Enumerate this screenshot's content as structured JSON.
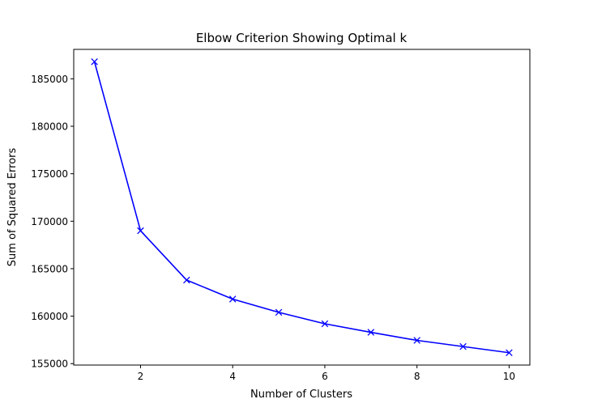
{
  "chart_data": {
    "type": "line",
    "title": "Elbow Criterion Showing Optimal k",
    "xlabel": "Number of Clusters",
    "ylabel": "Sum of Squared Errors",
    "xlim": [
      0.55,
      10.45
    ],
    "ylim": [
      154850,
      188100
    ],
    "xticks": [
      2,
      4,
      6,
      8,
      10
    ],
    "yticks": [
      155000,
      160000,
      165000,
      170000,
      175000,
      180000,
      185000
    ],
    "grid": false,
    "legend": null,
    "series": [
      {
        "x": [
          1,
          2,
          3,
          4,
          5,
          6,
          7,
          8,
          9,
          10
        ],
        "y": [
          186800,
          169000,
          163800,
          161800,
          160400,
          159200,
          158300,
          157450,
          156800,
          156150
        ],
        "color": "#0000ff",
        "marker": "x",
        "line": "solid"
      }
    ]
  }
}
